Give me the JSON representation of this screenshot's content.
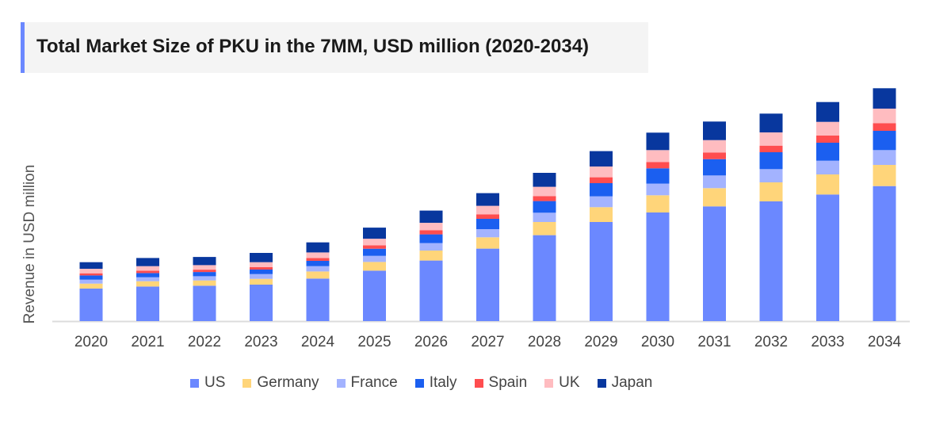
{
  "chart_data": {
    "type": "bar",
    "stacked": true,
    "title": "Total Market Size of PKU in the 7MM, USD million (2020-2034)",
    "xlabel": "",
    "ylabel": "Revenue in USD million",
    "ylim": [
      0,
      300
    ],
    "y_ticks_shown": false,
    "grid": false,
    "legend_position": "bottom",
    "categories": [
      "2020",
      "2021",
      "2022",
      "2023",
      "2024",
      "2025",
      "2026",
      "2027",
      "2028",
      "2029",
      "2030",
      "2031",
      "2032",
      "2033",
      "2034"
    ],
    "series": [
      {
        "name": "US",
        "color": "#6b88ff",
        "values": [
          41,
          43.6,
          44.6,
          46,
          53.6,
          63.6,
          76.4,
          91.4,
          108.4,
          125,
          137,
          144.7,
          151,
          159.7,
          170.3
        ]
      },
      {
        "name": "Germany",
        "color": "#ffd57a",
        "values": [
          6.3,
          6.7,
          6.7,
          7.3,
          9,
          11,
          12.6,
          14.3,
          16.6,
          18.7,
          21.7,
          23,
          24,
          25.3,
          26.7
        ]
      },
      {
        "name": "France",
        "color": "#a3b3ff",
        "values": [
          5,
          5,
          5.3,
          6,
          6.7,
          7.7,
          9.4,
          10.3,
          11.7,
          13.7,
          14.7,
          16,
          16.7,
          17.3,
          18.7
        ]
      },
      {
        "name": "Italy",
        "color": "#1b5ff0",
        "values": [
          5.3,
          5.3,
          5.3,
          5.7,
          6.7,
          9,
          11,
          13,
          14.7,
          16.6,
          19.3,
          20.6,
          21.3,
          22.7,
          24.3
        ]
      },
      {
        "name": "Spain",
        "color": "#ff4d4f",
        "values": [
          2.7,
          3,
          3,
          3,
          3.6,
          4.3,
          5.3,
          5.7,
          6.3,
          7.4,
          8,
          8.4,
          8.3,
          9,
          9.7
        ]
      },
      {
        "name": "UK",
        "color": "#ffbcc0",
        "values": [
          5.7,
          5.7,
          5.7,
          6.3,
          7,
          8.3,
          9.3,
          10.7,
          11.7,
          13.6,
          15,
          15.6,
          16.7,
          17.3,
          18.3
        ]
      },
      {
        "name": "Japan",
        "color": "#08379e",
        "values": [
          8.3,
          10.3,
          10.3,
          11.7,
          12.7,
          14,
          15.4,
          16,
          17.6,
          19.4,
          22,
          23.4,
          23.7,
          25,
          25.7
        ]
      }
    ]
  },
  "colors": {
    "title_accent": "#6b88ff",
    "title_background": "#f4f4f4"
  }
}
